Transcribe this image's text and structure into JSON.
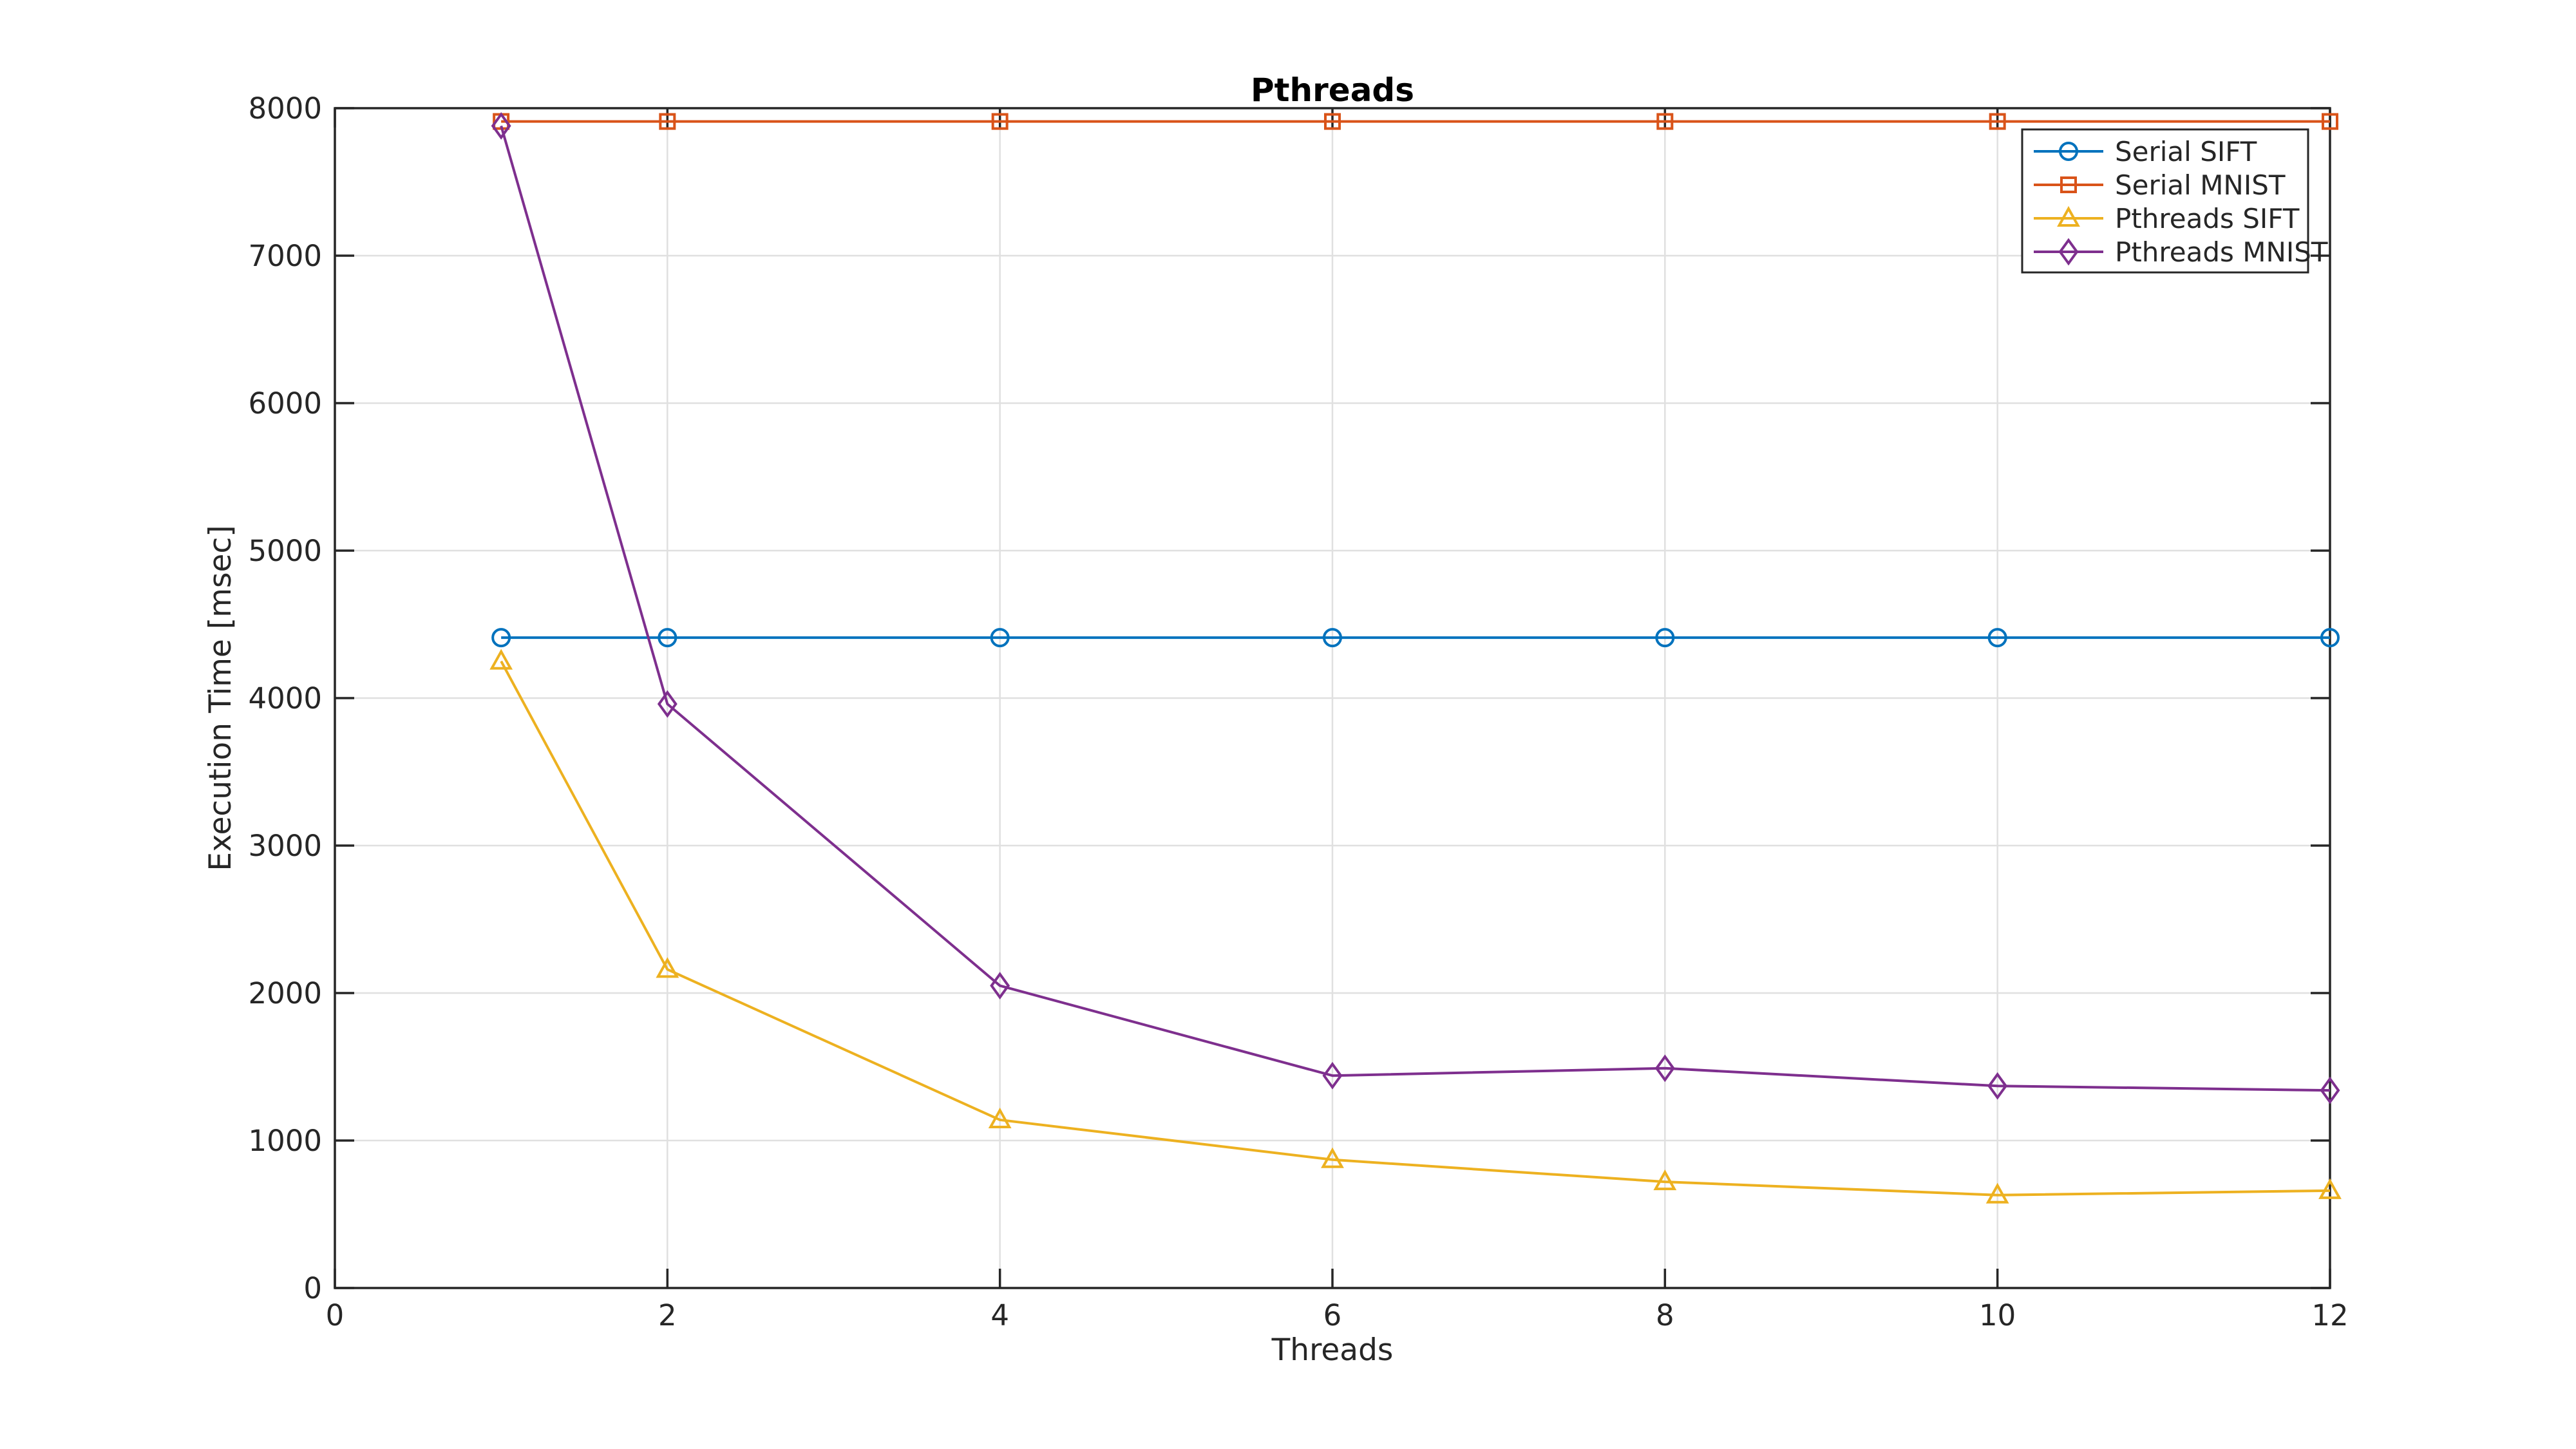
{
  "chart_data": {
    "type": "line",
    "title": "Pthreads",
    "xlabel": "Threads",
    "ylabel": "Execution Time [msec]",
    "xlim": [
      0,
      12
    ],
    "ylim": [
      0,
      8000
    ],
    "xticks": [
      0,
      2,
      4,
      6,
      8,
      10,
      12
    ],
    "yticks": [
      0,
      1000,
      2000,
      3000,
      4000,
      5000,
      6000,
      7000,
      8000
    ],
    "grid": true,
    "legend_position": "top-right",
    "x": [
      1,
      2,
      4,
      6,
      8,
      10,
      12
    ],
    "series": [
      {
        "name": "Serial SIFT",
        "color": "#0072BD",
        "marker": "circle",
        "values": [
          4410,
          4410,
          4410,
          4410,
          4410,
          4410,
          4410
        ]
      },
      {
        "name": "Serial MNIST",
        "color": "#D95319",
        "marker": "square",
        "values": [
          7910,
          7910,
          7910,
          7910,
          7910,
          7910,
          7910
        ]
      },
      {
        "name": "Pthreads SIFT",
        "color": "#EDB120",
        "marker": "triangle",
        "values": [
          4250,
          2160,
          1140,
          870,
          720,
          630,
          660
        ]
      },
      {
        "name": "Pthreads MNIST",
        "color": "#7E2F8E",
        "marker": "diamond",
        "values": [
          7880,
          3960,
          2050,
          1440,
          1490,
          1370,
          1340
        ]
      }
    ],
    "axis_color": "#262626",
    "grid_color": "#E0E0E0",
    "background_color": "#FFFFFF"
  }
}
